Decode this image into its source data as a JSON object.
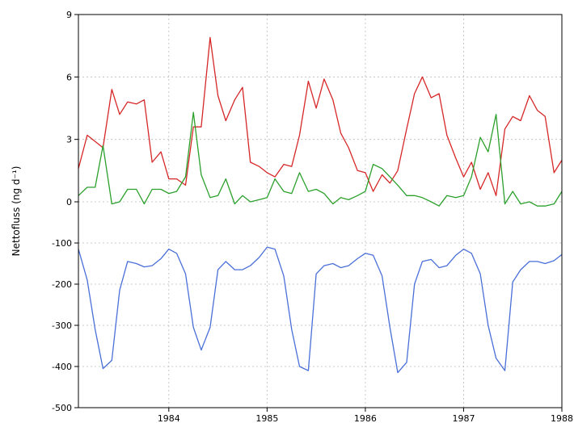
{
  "chart_data": {
    "type": "line",
    "ylabel": "Nettofluss (ng d⁻¹)",
    "xlabel": "",
    "title": "",
    "xlim": [
      1983.08,
      1988.0
    ],
    "x_ticks": [
      1984,
      1985,
      1986,
      1987,
      1988
    ],
    "x_tick_labels": [
      "1984",
      "1985",
      "1986",
      "1987",
      "1988"
    ],
    "y_ticks": [
      9,
      6,
      3,
      0,
      -100,
      -200,
      -300,
      -400,
      -500
    ],
    "y_tick_labels": [
      "9",
      "6",
      "3",
      "0",
      "-100",
      "-200",
      "-300",
      "-400",
      "-500"
    ],
    "y_axis_note": "broken axis: 0 to 9 in upper panel, -500 to 0 in lower panel",
    "grid": true,
    "series": [
      {
        "color": "#d62728",
        "points": [
          [
            1983.08,
            1.6
          ],
          [
            1983.17,
            3.2
          ],
          [
            1983.25,
            2.9
          ],
          [
            1983.33,
            2.6
          ],
          [
            1983.42,
            5.4
          ],
          [
            1983.5,
            4.2
          ],
          [
            1983.58,
            4.8
          ],
          [
            1983.67,
            4.7
          ],
          [
            1983.75,
            4.9
          ],
          [
            1983.83,
            1.9
          ],
          [
            1983.92,
            2.4
          ],
          [
            1984.0,
            1.1
          ],
          [
            1984.08,
            1.1
          ],
          [
            1984.17,
            0.8
          ],
          [
            1984.25,
            3.6
          ],
          [
            1984.33,
            3.6
          ],
          [
            1984.42,
            7.9
          ],
          [
            1984.5,
            5.1
          ],
          [
            1984.58,
            3.9
          ],
          [
            1984.67,
            4.9
          ],
          [
            1984.75,
            5.5
          ],
          [
            1984.83,
            1.9
          ],
          [
            1984.92,
            1.7
          ],
          [
            1985.0,
            1.4
          ],
          [
            1985.08,
            1.2
          ],
          [
            1985.17,
            1.8
          ],
          [
            1985.25,
            1.7
          ],
          [
            1985.33,
            3.2
          ],
          [
            1985.42,
            5.8
          ],
          [
            1985.5,
            4.5
          ],
          [
            1985.58,
            5.9
          ],
          [
            1985.67,
            4.9
          ],
          [
            1985.75,
            3.3
          ],
          [
            1985.83,
            2.6
          ],
          [
            1985.92,
            1.5
          ],
          [
            1986.0,
            1.4
          ],
          [
            1986.08,
            0.5
          ],
          [
            1986.17,
            1.3
          ],
          [
            1986.25,
            0.9
          ],
          [
            1986.33,
            1.5
          ],
          [
            1986.42,
            3.5
          ],
          [
            1986.5,
            5.2
          ],
          [
            1986.58,
            6.0
          ],
          [
            1986.67,
            5.0
          ],
          [
            1986.75,
            5.2
          ],
          [
            1986.83,
            3.2
          ],
          [
            1986.92,
            2.1
          ],
          [
            1987.0,
            1.2
          ],
          [
            1987.08,
            1.9
          ],
          [
            1987.17,
            0.6
          ],
          [
            1987.25,
            1.4
          ],
          [
            1987.33,
            0.3
          ],
          [
            1987.42,
            3.5
          ],
          [
            1987.5,
            4.1
          ],
          [
            1987.58,
            3.9
          ],
          [
            1987.67,
            5.1
          ],
          [
            1987.75,
            4.4
          ],
          [
            1987.83,
            4.1
          ],
          [
            1987.92,
            1.4
          ],
          [
            1988.0,
            2.0
          ]
        ]
      },
      {
        "color": "#2ca02c",
        "points": [
          [
            1983.08,
            0.3
          ],
          [
            1983.17,
            0.7
          ],
          [
            1983.25,
            0.7
          ],
          [
            1983.33,
            2.7
          ],
          [
            1983.42,
            -0.1
          ],
          [
            1983.5,
            0.0
          ],
          [
            1983.58,
            0.6
          ],
          [
            1983.67,
            0.6
          ],
          [
            1983.75,
            -0.1
          ],
          [
            1983.83,
            0.6
          ],
          [
            1983.92,
            0.6
          ],
          [
            1984.0,
            0.4
          ],
          [
            1984.08,
            0.5
          ],
          [
            1984.17,
            1.2
          ],
          [
            1984.25,
            4.3
          ],
          [
            1984.33,
            1.3
          ],
          [
            1984.42,
            0.2
          ],
          [
            1984.5,
            0.3
          ],
          [
            1984.58,
            1.1
          ],
          [
            1984.67,
            -0.1
          ],
          [
            1984.75,
            0.3
          ],
          [
            1984.83,
            0.0
          ],
          [
            1984.92,
            0.1
          ],
          [
            1985.0,
            0.2
          ],
          [
            1985.08,
            1.1
          ],
          [
            1985.17,
            0.5
          ],
          [
            1985.25,
            0.4
          ],
          [
            1985.33,
            1.4
          ],
          [
            1985.42,
            0.5
          ],
          [
            1985.5,
            0.6
          ],
          [
            1985.58,
            0.4
          ],
          [
            1985.67,
            -0.1
          ],
          [
            1985.75,
            0.2
          ],
          [
            1985.83,
            0.1
          ],
          [
            1985.92,
            0.3
          ],
          [
            1986.0,
            0.5
          ],
          [
            1986.08,
            1.8
          ],
          [
            1986.17,
            1.6
          ],
          [
            1986.25,
            1.2
          ],
          [
            1986.33,
            0.8
          ],
          [
            1986.42,
            0.3
          ],
          [
            1986.5,
            0.3
          ],
          [
            1986.58,
            0.2
          ],
          [
            1986.67,
            0.0
          ],
          [
            1986.75,
            -0.2
          ],
          [
            1986.83,
            0.3
          ],
          [
            1986.92,
            0.2
          ],
          [
            1987.0,
            0.3
          ],
          [
            1987.08,
            1.2
          ],
          [
            1987.17,
            3.1
          ],
          [
            1987.25,
            2.4
          ],
          [
            1987.33,
            4.2
          ],
          [
            1987.42,
            -0.1
          ],
          [
            1987.5,
            0.5
          ],
          [
            1987.58,
            -0.1
          ],
          [
            1987.67,
            0.0
          ],
          [
            1987.75,
            -0.2
          ],
          [
            1987.83,
            -0.2
          ],
          [
            1987.92,
            -0.1
          ],
          [
            1988.0,
            0.5
          ]
        ]
      },
      {
        "color": "#4a6fd8",
        "points": [
          [
            1983.08,
            -115
          ],
          [
            1983.17,
            -190
          ],
          [
            1983.25,
            -310
          ],
          [
            1983.33,
            -405
          ],
          [
            1983.42,
            -385
          ],
          [
            1983.5,
            -215
          ],
          [
            1983.58,
            -145
          ],
          [
            1983.67,
            -150
          ],
          [
            1983.75,
            -158
          ],
          [
            1983.83,
            -155
          ],
          [
            1983.92,
            -138
          ],
          [
            1984.0,
            -115
          ],
          [
            1984.08,
            -125
          ],
          [
            1984.17,
            -175
          ],
          [
            1984.25,
            -305
          ],
          [
            1984.33,
            -360
          ],
          [
            1984.42,
            -305
          ],
          [
            1984.5,
            -165
          ],
          [
            1984.58,
            -145
          ],
          [
            1984.67,
            -165
          ],
          [
            1984.75,
            -165
          ],
          [
            1984.83,
            -155
          ],
          [
            1984.92,
            -135
          ],
          [
            1985.0,
            -110
          ],
          [
            1985.08,
            -115
          ],
          [
            1985.17,
            -180
          ],
          [
            1985.25,
            -310
          ],
          [
            1985.33,
            -400
          ],
          [
            1985.42,
            -410
          ],
          [
            1985.5,
            -175
          ],
          [
            1985.58,
            -155
          ],
          [
            1985.67,
            -150
          ],
          [
            1985.75,
            -160
          ],
          [
            1985.83,
            -155
          ],
          [
            1985.92,
            -138
          ],
          [
            1986.0,
            -125
          ],
          [
            1986.08,
            -130
          ],
          [
            1986.17,
            -180
          ],
          [
            1986.25,
            -305
          ],
          [
            1986.33,
            -415
          ],
          [
            1986.42,
            -390
          ],
          [
            1986.5,
            -200
          ],
          [
            1986.58,
            -145
          ],
          [
            1986.67,
            -140
          ],
          [
            1986.75,
            -160
          ],
          [
            1986.83,
            -155
          ],
          [
            1986.92,
            -130
          ],
          [
            1987.0,
            -115
          ],
          [
            1987.08,
            -125
          ],
          [
            1987.17,
            -175
          ],
          [
            1987.25,
            -300
          ],
          [
            1987.33,
            -380
          ],
          [
            1987.42,
            -410
          ],
          [
            1987.5,
            -195
          ],
          [
            1987.58,
            -165
          ],
          [
            1987.67,
            -145
          ],
          [
            1987.75,
            -145
          ],
          [
            1987.83,
            -150
          ],
          [
            1987.92,
            -143
          ],
          [
            1988.0,
            -128
          ]
        ]
      }
    ]
  }
}
